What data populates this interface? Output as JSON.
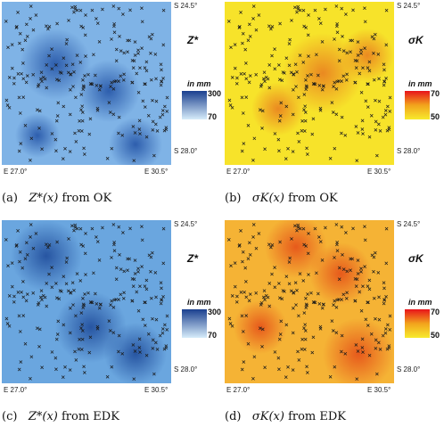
{
  "panels": [
    {
      "id": "a",
      "var_label": "Z*",
      "unit": "in mm",
      "cbar_max": "300",
      "cbar_min": "70",
      "coord_top_right": "S 24.5°",
      "coord_bottom_right": "S 28.0°",
      "coord_bottom_left": "E 27.0°",
      "coord_bottom_right2": "E 30.5°",
      "caption_tag": "(a)",
      "caption_math": "Z*(x)",
      "caption_text": "from OK",
      "colors": [
        "#7fb3e6",
        "#1f4fa3"
      ]
    },
    {
      "id": "b",
      "var_label": "σK",
      "unit": "in mm",
      "cbar_max": "70",
      "cbar_min": "50",
      "coord_top_right": "S 24.5°",
      "coord_bottom_right": "S 28.0°",
      "coord_bottom_left": "E 27.0°",
      "coord_bottom_right2": "E 30.5°",
      "caption_tag": "(b)",
      "caption_math": "σK(x)",
      "caption_text": "from OK",
      "colors": [
        "#f7e32a",
        "#e8791f"
      ]
    },
    {
      "id": "c",
      "var_label": "Z*",
      "unit": "in mm",
      "cbar_max": "300",
      "cbar_min": "70",
      "coord_top_right": "S 24.5°",
      "coord_bottom_right": "S 28.0°",
      "coord_bottom_left": "E 27.0°",
      "coord_bottom_right2": "E 30.5°",
      "caption_tag": "(c)",
      "caption_math": "Z*(x)",
      "caption_text": "from EDK",
      "colors": [
        "#6aa6df",
        "#1b4797"
      ]
    },
    {
      "id": "d",
      "var_label": "σK",
      "unit": "in mm",
      "cbar_max": "70",
      "cbar_min": "50",
      "coord_top_right": "S 24.5°",
      "coord_bottom_right": "S 28.0°",
      "coord_bottom_left": "E 27.0°",
      "coord_bottom_right2": "E 30.5°",
      "caption_tag": "(d)",
      "caption_math": "σK(x)",
      "caption_text": "from EDK",
      "colors": [
        "#f5b335",
        "#e44a17"
      ]
    }
  ]
}
